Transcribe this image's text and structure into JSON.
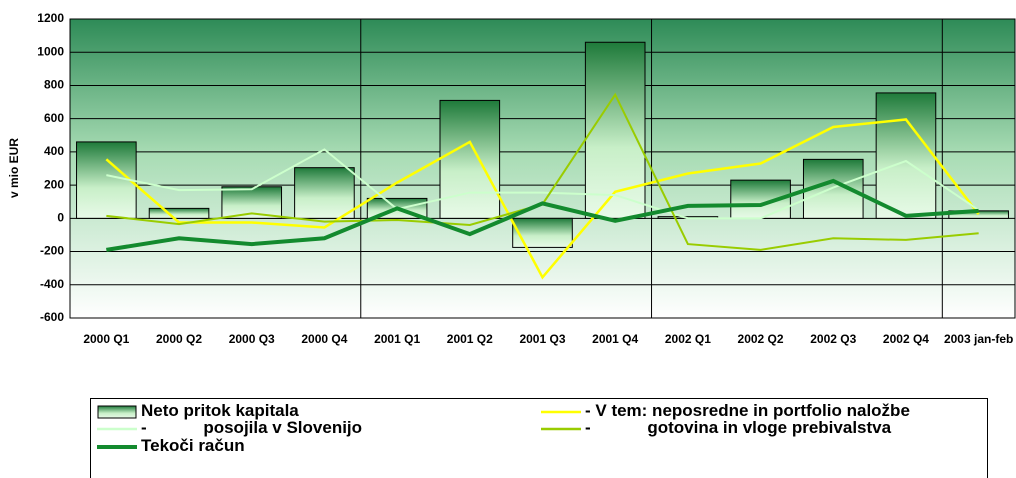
{
  "chart_data": {
    "type": "bar",
    "y_label": "v mio EUR",
    "categories": [
      "2000 Q1",
      "2000 Q2",
      "2000 Q3",
      "2000 Q4",
      "2001 Q1",
      "2001 Q2",
      "2001 Q3",
      "2001 Q4",
      "2002 Q1",
      "2002 Q2",
      "2002 Q3",
      "2002 Q4",
      "2003 jan-feb"
    ],
    "series": [
      {
        "name": "Neto pritok kapitala",
        "type": "bar",
        "color": "#1e7a3a",
        "values": [
          460,
          60,
          190,
          305,
          120,
          710,
          -175,
          1060,
          10,
          230,
          355,
          755,
          45
        ]
      },
      {
        "name": "- V tem: neposredne in portfolio naložbe",
        "type": "line",
        "color": "#ffff00",
        "values": [
          355,
          -25,
          -25,
          -55,
          215,
          460,
          -355,
          160,
          270,
          330,
          550,
          595,
          25
        ]
      },
      {
        "name": "-            posojila v Slovenijo",
        "type": "line",
        "color": "#ccffcc",
        "values": [
          260,
          170,
          175,
          415,
          55,
          155,
          155,
          140,
          0,
          0,
          185,
          345,
          50
        ]
      },
      {
        "name": "-            gotovina in vloge prebivalstva",
        "type": "line",
        "color": "#99cc00",
        "values": [
          15,
          -35,
          30,
          -20,
          -10,
          -40,
          85,
          745,
          -155,
          -190,
          -120,
          -130,
          -90
        ]
      },
      {
        "name": "Tekoči račun",
        "type": "line",
        "color": "#138a2e",
        "values": [
          -190,
          -120,
          -155,
          -120,
          60,
          -95,
          90,
          -15,
          75,
          80,
          225,
          15,
          45
        ]
      }
    ],
    "ylim": [
      -600,
      1200
    ],
    "yticks": [
      -600,
      -400,
      -200,
      0,
      200,
      400,
      600,
      800,
      1000,
      1200
    ],
    "grid": true,
    "legend": "bottom"
  }
}
